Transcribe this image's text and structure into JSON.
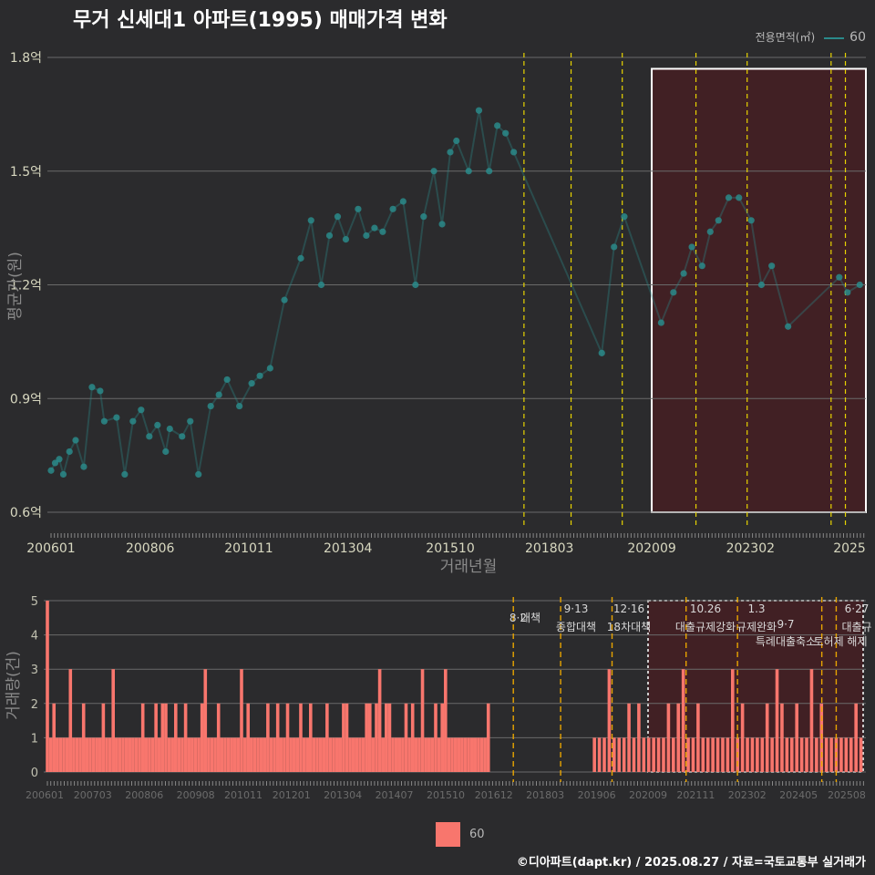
{
  "title": "무거 신세대1 아파트(1995) 매매가격 변화",
  "legend_top": {
    "title": "전용면적(㎡)",
    "value": "60"
  },
  "legend_bottom": {
    "value": "60"
  },
  "footer": "©디아파트(dapt.kr) / 2025.08.27 / 자료=국토교통부 실거래가",
  "colors": {
    "bg": "#2b2b2d",
    "line": "#2a8a8a",
    "bar": "#f8766d",
    "vline": "#e8d400",
    "vline2": "#e8a400",
    "highlight": "#4a1e22"
  },
  "chart_data": [
    {
      "type": "line",
      "title": "무거 신세대1 아파트(1995) 매매가격 변화",
      "xlabel": "거래년월",
      "ylabel": "평균가(원)",
      "xlim": [
        2006.0,
        2025.9
      ],
      "ylim": [
        0.55,
        1.85
      ],
      "yticks": [
        0.6,
        0.9,
        1.2,
        1.5,
        1.8
      ],
      "ytick_labels": [
        "0.6억",
        "0.9억",
        "1.2억",
        "1.5억",
        "1.8억"
      ],
      "xticks": [
        2006.0,
        2008.42,
        2010.83,
        2013.25,
        2015.75,
        2018.17,
        2020.67,
        2023.08,
        2025.5
      ],
      "xtick_labels": [
        "200601",
        "200806",
        "201011",
        "201304",
        "201510",
        "201803",
        "202009",
        "202302",
        "2025"
      ],
      "series": [
        {
          "name": "60",
          "x": [
            2006.0,
            2006.1,
            2006.2,
            2006.3,
            2006.45,
            2006.6,
            2006.8,
            2007.0,
            2007.2,
            2007.3,
            2007.6,
            2007.8,
            2008.0,
            2008.2,
            2008.4,
            2008.6,
            2008.8,
            2008.9,
            2009.2,
            2009.4,
            2009.6,
            2009.9,
            2010.1,
            2010.3,
            2010.6,
            2010.9,
            2011.1,
            2011.35,
            2011.7,
            2012.1,
            2012.35,
            2012.6,
            2012.8,
            2013.0,
            2013.2,
            2013.5,
            2013.7,
            2013.9,
            2014.1,
            2014.35,
            2014.6,
            2014.9,
            2015.1,
            2015.35,
            2015.55,
            2015.75,
            2015.9,
            2016.2,
            2016.45,
            2016.7,
            2016.9,
            2017.1,
            2017.3,
            2019.45,
            2019.75,
            2020.0,
            2020.9,
            2021.2,
            2021.45,
            2021.65,
            2021.9,
            2022.1,
            2022.3,
            2022.55,
            2022.8,
            2023.1,
            2023.35,
            2023.6,
            2024.0,
            2025.25,
            2025.45,
            2025.75
          ],
          "values": [
            0.71,
            0.73,
            0.74,
            0.7,
            0.76,
            0.79,
            0.72,
            0.93,
            0.92,
            0.84,
            0.85,
            0.7,
            0.84,
            0.87,
            0.8,
            0.83,
            0.76,
            0.82,
            0.8,
            0.84,
            0.7,
            0.88,
            0.91,
            0.95,
            0.88,
            0.94,
            0.96,
            0.98,
            1.16,
            1.27,
            1.37,
            1.2,
            1.33,
            1.38,
            1.32,
            1.4,
            1.33,
            1.35,
            1.34,
            1.4,
            1.42,
            1.2,
            1.38,
            1.5,
            1.36,
            1.55,
            1.58,
            1.5,
            1.66,
            1.5,
            1.62,
            1.6,
            1.55,
            1.02,
            1.3,
            1.38,
            1.1,
            1.18,
            1.23,
            1.3,
            1.25,
            1.34,
            1.37,
            1.43,
            1.43,
            1.37,
            1.2,
            1.25,
            1.09,
            1.22,
            1.18,
            1.2
          ]
        }
      ],
      "vlines": [
        2017.55,
        2018.7,
        2019.95,
        2021.75,
        2023.0,
        2025.05,
        2025.4
      ],
      "highlight": {
        "x0": 2020.67,
        "x1": 2025.9,
        "y0": 0.6,
        "y1": 1.77
      }
    },
    {
      "type": "bar",
      "xlabel": "",
      "ylabel": "거래량(건)",
      "xlim": [
        2006.0,
        2025.9
      ],
      "ylim": [
        0,
        5
      ],
      "yticks": [
        0,
        1,
        2,
        3,
        4,
        5
      ],
      "xticks": [
        2006.0,
        2007.17,
        2008.42,
        2009.67,
        2010.83,
        2012.0,
        2013.25,
        2014.5,
        2015.75,
        2016.92,
        2018.17,
        2019.42,
        2020.67,
        2021.83,
        2023.08,
        2024.33,
        2025.5
      ],
      "xtick_labels": [
        "200601",
        "200703",
        "200806",
        "200908",
        "201011",
        "201201",
        "201304",
        "201407",
        "201510",
        "201612",
        "201803",
        "201906",
        "202009",
        "202111",
        "202302",
        "202405",
        "202508"
      ],
      "series": [
        {
          "name": "60",
          "counts": [
            5,
            1,
            2,
            1,
            1,
            1,
            1,
            3,
            1,
            1,
            1,
            2,
            1,
            1,
            1,
            1,
            1,
            2,
            1,
            1,
            3,
            1,
            1,
            1,
            1,
            1,
            1,
            1,
            1,
            2,
            1,
            1,
            1,
            2,
            1,
            2,
            2,
            1,
            1,
            2,
            1,
            1,
            2,
            1,
            1,
            1,
            1,
            2,
            3,
            1,
            1,
            1,
            2,
            1,
            1,
            1,
            1,
            1,
            1,
            3,
            1,
            2,
            1,
            1,
            1,
            1,
            1,
            2,
            1,
            1,
            2,
            1,
            1,
            2,
            1,
            1,
            1,
            2,
            1,
            1,
            2,
            1,
            1,
            1,
            1,
            2,
            1,
            1,
            1,
            1,
            2,
            2,
            1,
            1,
            1,
            1,
            1,
            2,
            2,
            1,
            2,
            3,
            1,
            2,
            2,
            1,
            1,
            1,
            1,
            2,
            1,
            2,
            1,
            1,
            3,
            1,
            1,
            1,
            2,
            1,
            2,
            3,
            1,
            1,
            1,
            1,
            1,
            1,
            1,
            1,
            1,
            1,
            1,
            1,
            2,
            1,
            1,
            1,
            3,
            1,
            1,
            1,
            2,
            1,
            2,
            1,
            1,
            1,
            1,
            1,
            2,
            1,
            2,
            3,
            1,
            1,
            2,
            1,
            1,
            1,
            1,
            1,
            1,
            3,
            1,
            2,
            1,
            1,
            1,
            1,
            2,
            1,
            3,
            2,
            1,
            1,
            2,
            1,
            1,
            3,
            1,
            2,
            1,
            1,
            1,
            1,
            1,
            1,
            2,
            1
          ]
        }
      ],
      "vlines": [
        2017.55,
        2018.7,
        2019.95,
        2021.75,
        2023.0,
        2025.05,
        2025.4
      ],
      "highlight": {
        "x0": 2020.67,
        "x1": 2025.9,
        "y0": 0,
        "y1": 5
      },
      "annotations": [
        {
          "date": "8·2",
          "label": "대책"
        },
        {
          "date": "9·13",
          "label": "종합대책"
        },
        {
          "date": "12·16",
          "label": "18차대책"
        },
        {
          "date": "10.26",
          "label": "대출규제강화"
        },
        {
          "date": "1.3",
          "label": "규제완화"
        },
        {
          "date": "9·7",
          "label": "특례대출축소"
        },
        {
          "date": "",
          "label": "토허제 해제"
        },
        {
          "date": "6·27",
          "label": "대출규"
        }
      ]
    }
  ]
}
